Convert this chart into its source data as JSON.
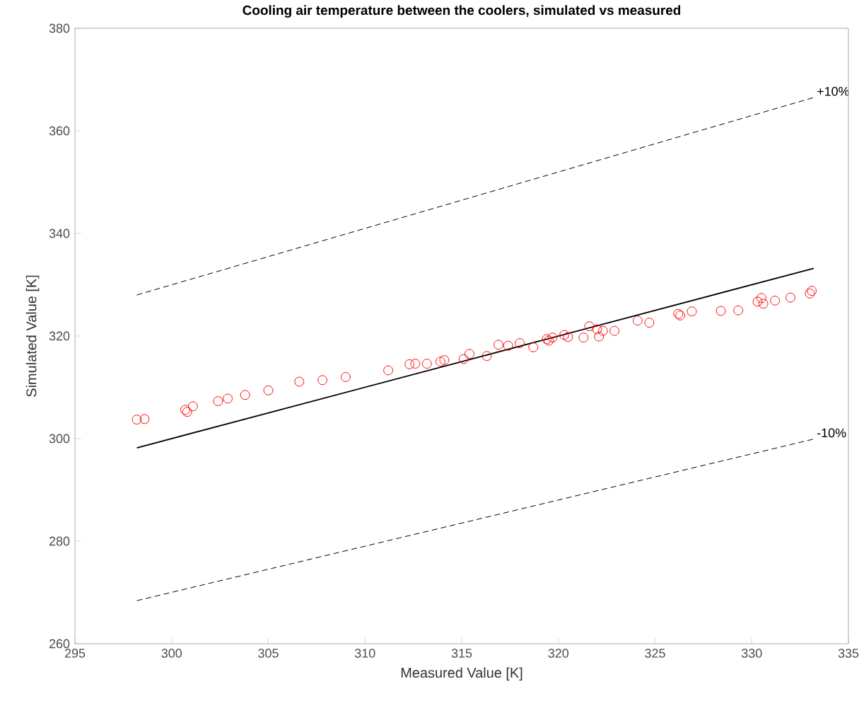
{
  "chart_data": {
    "type": "scatter",
    "title": "Cooling air temperature between the coolers, simulated vs measured",
    "xlabel": "Measured Value [K]",
    "ylabel": "Simulated Value [K]",
    "xlim": [
      295,
      335
    ],
    "ylim": [
      260,
      380
    ],
    "xticks": [
      295,
      300,
      305,
      310,
      315,
      320,
      325,
      330,
      335
    ],
    "yticks": [
      260,
      280,
      300,
      320,
      340,
      360,
      380
    ],
    "grid": false,
    "series": [
      {
        "color": "#ff0000",
        "marker": "circle",
        "x": [
          298.2,
          298.6,
          300.7,
          300.8,
          301.1,
          302.4,
          302.9,
          303.8,
          305.0,
          306.6,
          307.8,
          309.0,
          311.2,
          312.3,
          312.6,
          313.2,
          313.9,
          314.1,
          315.1,
          315.4,
          316.3,
          316.9,
          317.4,
          318.0,
          318.7,
          319.4,
          319.5,
          319.7,
          320.3,
          320.5,
          321.3,
          321.6,
          322.0,
          322.1,
          322.3,
          322.9,
          324.1,
          324.7,
          326.2,
          326.3,
          326.9,
          328.4,
          329.3,
          330.3,
          330.5,
          330.6,
          331.2,
          332.0,
          333.0,
          333.1
        ],
        "values": [
          303.7,
          303.8,
          305.6,
          305.2,
          306.3,
          307.3,
          307.8,
          308.5,
          309.4,
          311.1,
          311.4,
          312.0,
          313.3,
          314.5,
          314.6,
          314.6,
          315.0,
          315.3,
          315.5,
          316.5,
          316.1,
          318.3,
          318.1,
          318.6,
          317.8,
          319.4,
          319.1,
          319.7,
          320.2,
          319.8,
          319.7,
          321.9,
          321.3,
          319.9,
          321.0,
          321.0,
          323.0,
          322.6,
          324.3,
          324.0,
          324.8,
          324.9,
          325.0,
          326.7,
          327.4,
          326.3,
          326.9,
          327.5,
          328.3,
          328.8
        ]
      },
      {
        "type": "line",
        "color": "#000000",
        "line_style": "solid",
        "x": [
          298.2,
          333.2
        ],
        "values": [
          298.2,
          333.2
        ]
      },
      {
        "type": "line",
        "color": "#000000",
        "line_style": "dashed",
        "x": [
          298.2,
          333.2
        ],
        "values": [
          328.0,
          366.5
        ]
      },
      {
        "type": "line",
        "color": "#000000",
        "line_style": "dashed",
        "x": [
          298.2,
          333.2
        ],
        "values": [
          268.4,
          299.9
        ]
      }
    ],
    "annotations": [
      {
        "text": "+10%",
        "x": 333.2,
        "y": 366.5
      },
      {
        "text": "-10%",
        "x": 333.2,
        "y": 299.9
      }
    ]
  }
}
